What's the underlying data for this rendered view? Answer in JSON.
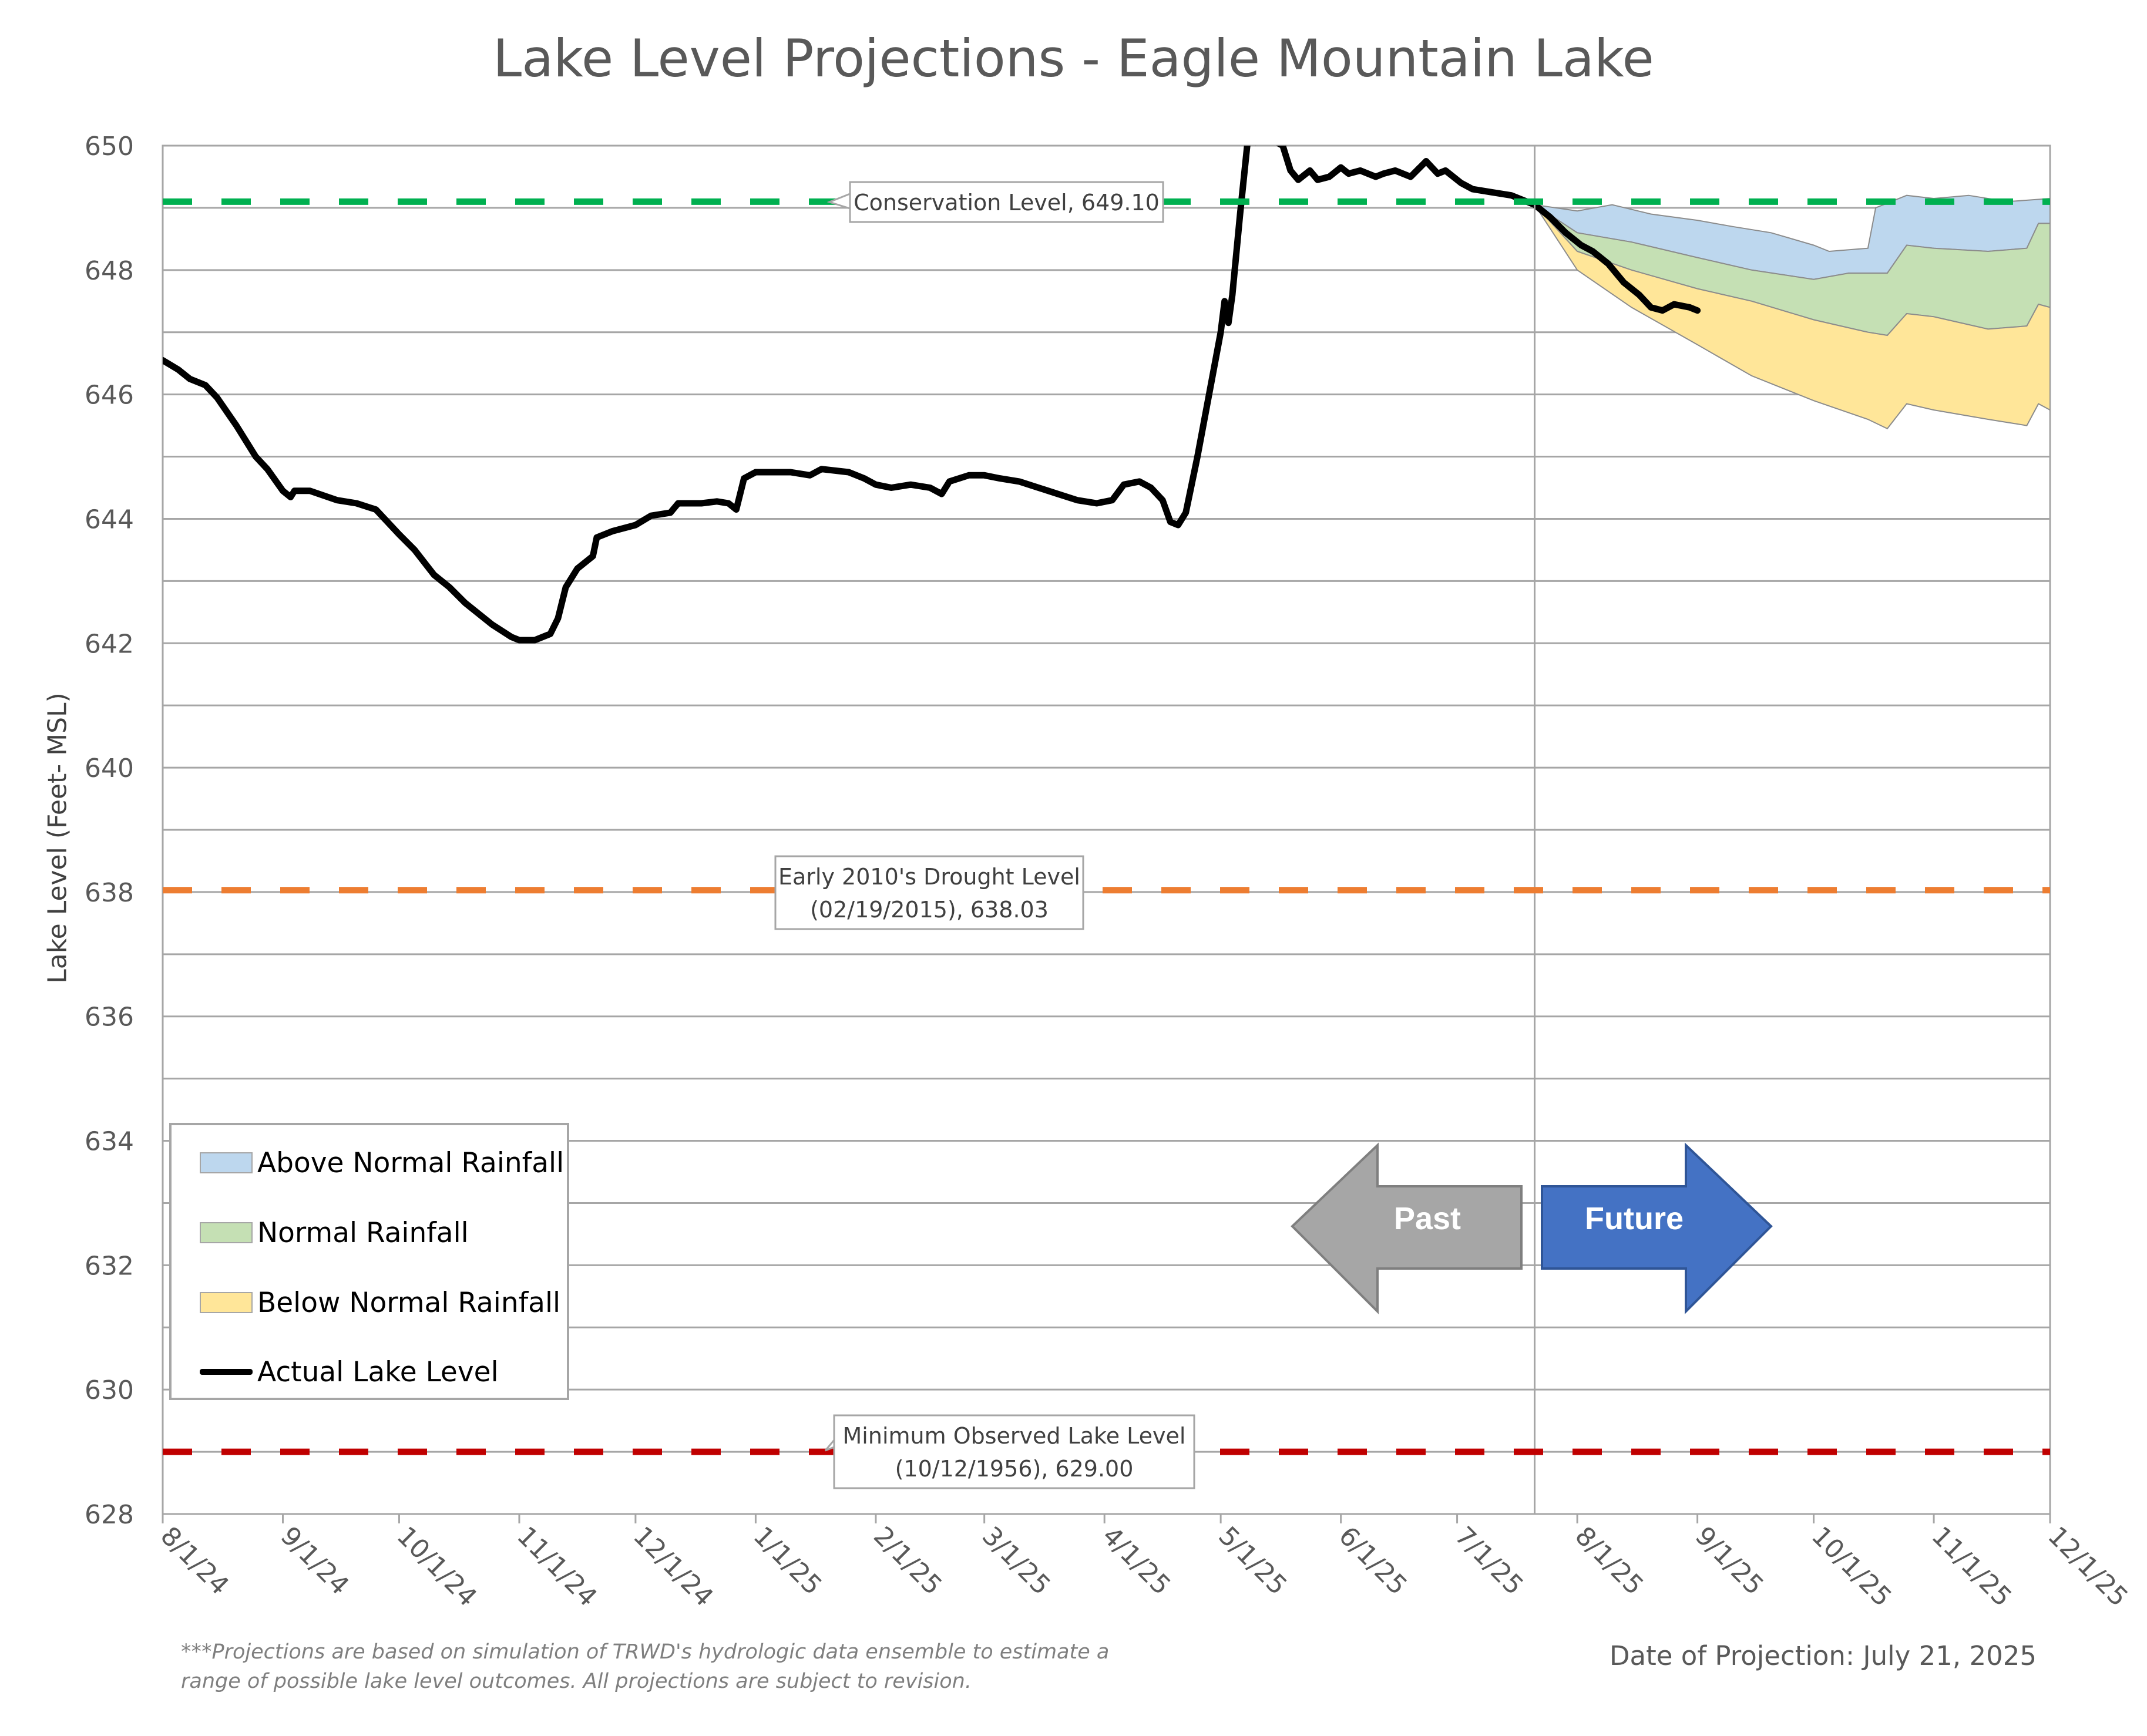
{
  "chart_data": {
    "type": "area",
    "title": "Lake Level Projections - Eagle Mountain Lake",
    "ylabel": "Lake Level (Feet- MSL)",
    "xlabel": "",
    "ylim": [
      628,
      650
    ],
    "yticks": [
      "628",
      "630",
      "632",
      "634",
      "636",
      "638",
      "640",
      "642",
      "644",
      "646",
      "648",
      "650"
    ],
    "xlim": [
      "2024-08-01",
      "2025-12-01"
    ],
    "xtick_dates": [
      "2024-08-01",
      "2024-09-01",
      "2024-10-01",
      "2024-11-01",
      "2024-12-01",
      "2025-01-01",
      "2025-02-01",
      "2025-03-01",
      "2025-04-01",
      "2025-05-01",
      "2025-06-01",
      "2025-07-01",
      "2025-08-01",
      "2025-09-01",
      "2025-10-01",
      "2025-11-01",
      "2025-12-01"
    ],
    "xtick_labels": [
      "8/1/24",
      "9/1/24",
      "10/1/24",
      "11/1/24",
      "12/1/24",
      "1/1/25",
      "2/1/25",
      "3/1/25",
      "4/1/25",
      "5/1/25",
      "6/1/25",
      "7/1/25",
      "8/1/25",
      "9/1/25",
      "10/1/25",
      "11/1/25",
      "12/1/25"
    ],
    "grid": true,
    "divider_date": "2025-07-21",
    "reference_lines": [
      {
        "label": "Conservation Level, 649.10",
        "label_lines": [
          "Conservation Level, 649.10"
        ],
        "value": 649.1,
        "color": "#00b050"
      },
      {
        "label": "Early 2010's Drought Level (02/19/2015), 638.03",
        "label_lines": [
          "Early 2010's Drought Level",
          "(02/19/2015), 638.03"
        ],
        "value": 638.03,
        "color": "#ed7d31"
      },
      {
        "label": "Minimum Observed Lake Level (10/12/1956), 629.00",
        "label_lines": [
          "Minimum Observed Lake Level",
          "(10/12/1956), 629.00"
        ],
        "value": 629.0,
        "color": "#c00000"
      }
    ],
    "bands": [
      {
        "name": "Above Normal Rainfall",
        "color": "#bdd7ee",
        "upper": [
          [
            "2025-07-21",
            649.05
          ],
          [
            "2025-08-01",
            648.95
          ],
          [
            "2025-08-10",
            649.05
          ],
          [
            "2025-08-20",
            648.9
          ],
          [
            "2025-09-01",
            648.8
          ],
          [
            "2025-09-10",
            648.7
          ],
          [
            "2025-09-20",
            648.6
          ],
          [
            "2025-10-01",
            648.4
          ],
          [
            "2025-10-05",
            648.3
          ],
          [
            "2025-10-15",
            648.35
          ],
          [
            "2025-10-17",
            649.0
          ],
          [
            "2025-10-25",
            649.2
          ],
          [
            "2025-11-01",
            649.15
          ],
          [
            "2025-11-10",
            649.2
          ],
          [
            "2025-11-20",
            649.1
          ],
          [
            "2025-12-01",
            649.15
          ]
        ],
        "lower": [
          [
            "2025-07-21",
            649.05
          ],
          [
            "2025-08-01",
            648.6
          ],
          [
            "2025-08-15",
            648.45
          ],
          [
            "2025-09-01",
            648.2
          ],
          [
            "2025-09-15",
            648.0
          ],
          [
            "2025-10-01",
            647.85
          ],
          [
            "2025-10-10",
            647.95
          ],
          [
            "2025-10-20",
            647.95
          ],
          [
            "2025-10-25",
            648.4
          ],
          [
            "2025-11-01",
            648.35
          ],
          [
            "2025-11-15",
            648.3
          ],
          [
            "2025-11-25",
            648.35
          ],
          [
            "2025-11-28",
            648.75
          ],
          [
            "2025-12-01",
            648.75
          ]
        ]
      },
      {
        "name": "Normal Rainfall",
        "color": "#c5e0b4",
        "upper": [
          [
            "2025-07-21",
            649.05
          ],
          [
            "2025-08-01",
            648.6
          ],
          [
            "2025-08-15",
            648.45
          ],
          [
            "2025-09-01",
            648.2
          ],
          [
            "2025-09-15",
            648.0
          ],
          [
            "2025-10-01",
            647.85
          ],
          [
            "2025-10-10",
            647.95
          ],
          [
            "2025-10-20",
            647.95
          ],
          [
            "2025-10-25",
            648.4
          ],
          [
            "2025-11-01",
            648.35
          ],
          [
            "2025-11-15",
            648.3
          ],
          [
            "2025-11-25",
            648.35
          ],
          [
            "2025-11-28",
            648.75
          ],
          [
            "2025-12-01",
            648.75
          ]
        ],
        "lower": [
          [
            "2025-07-21",
            649.05
          ],
          [
            "2025-08-01",
            648.3
          ],
          [
            "2025-08-15",
            648.0
          ],
          [
            "2025-09-01",
            647.7
          ],
          [
            "2025-09-15",
            647.5
          ],
          [
            "2025-10-01",
            647.2
          ],
          [
            "2025-10-15",
            647.0
          ],
          [
            "2025-10-20",
            646.95
          ],
          [
            "2025-10-25",
            647.3
          ],
          [
            "2025-11-01",
            647.25
          ],
          [
            "2025-11-15",
            647.05
          ],
          [
            "2025-11-25",
            647.1
          ],
          [
            "2025-11-28",
            647.45
          ],
          [
            "2025-12-01",
            647.4
          ]
        ]
      },
      {
        "name": "Below Normal Rainfall",
        "color": "#ffe699",
        "upper": [
          [
            "2025-07-21",
            649.05
          ],
          [
            "2025-08-01",
            648.3
          ],
          [
            "2025-08-15",
            648.0
          ],
          [
            "2025-09-01",
            647.7
          ],
          [
            "2025-09-15",
            647.5
          ],
          [
            "2025-10-01",
            647.2
          ],
          [
            "2025-10-15",
            647.0
          ],
          [
            "2025-10-20",
            646.95
          ],
          [
            "2025-10-25",
            647.3
          ],
          [
            "2025-11-01",
            647.25
          ],
          [
            "2025-11-15",
            647.05
          ],
          [
            "2025-11-25",
            647.1
          ],
          [
            "2025-11-28",
            647.45
          ],
          [
            "2025-12-01",
            647.4
          ]
        ],
        "lower": [
          [
            "2025-07-21",
            649.05
          ],
          [
            "2025-08-01",
            648.0
          ],
          [
            "2025-08-15",
            647.4
          ],
          [
            "2025-09-01",
            646.8
          ],
          [
            "2025-09-15",
            646.3
          ],
          [
            "2025-10-01",
            645.9
          ],
          [
            "2025-10-15",
            645.6
          ],
          [
            "2025-10-20",
            645.45
          ],
          [
            "2025-10-25",
            645.85
          ],
          [
            "2025-11-01",
            645.75
          ],
          [
            "2025-11-15",
            645.6
          ],
          [
            "2025-11-25",
            645.5
          ],
          [
            "2025-11-28",
            645.85
          ],
          [
            "2025-12-01",
            645.75
          ]
        ]
      }
    ],
    "series": [
      {
        "name": "Actual Lake Level",
        "color": "#000000",
        "points": [
          [
            "2024-08-01",
            646.55
          ],
          [
            "2024-08-05",
            646.4
          ],
          [
            "2024-08-08",
            646.25
          ],
          [
            "2024-08-12",
            646.15
          ],
          [
            "2024-08-15",
            645.95
          ],
          [
            "2024-08-20",
            645.5
          ],
          [
            "2024-08-25",
            645.0
          ],
          [
            "2024-08-28",
            644.8
          ],
          [
            "2024-09-01",
            644.45
          ],
          [
            "2024-09-03",
            644.35
          ],
          [
            "2024-09-04",
            644.45
          ],
          [
            "2024-09-08",
            644.45
          ],
          [
            "2024-09-15",
            644.3
          ],
          [
            "2024-09-20",
            644.25
          ],
          [
            "2024-09-25",
            644.15
          ],
          [
            "2024-10-01",
            643.75
          ],
          [
            "2024-10-05",
            643.5
          ],
          [
            "2024-10-10",
            643.1
          ],
          [
            "2024-10-14",
            642.9
          ],
          [
            "2024-10-18",
            642.65
          ],
          [
            "2024-10-25",
            642.3
          ],
          [
            "2024-10-30",
            642.1
          ],
          [
            "2024-11-01",
            642.05
          ],
          [
            "2024-11-05",
            642.05
          ],
          [
            "2024-11-09",
            642.15
          ],
          [
            "2024-11-11",
            642.4
          ],
          [
            "2024-11-13",
            642.9
          ],
          [
            "2024-11-16",
            643.2
          ],
          [
            "2024-11-20",
            643.4
          ],
          [
            "2024-11-21",
            643.7
          ],
          [
            "2024-11-25",
            643.8
          ],
          [
            "2024-12-01",
            643.9
          ],
          [
            "2024-12-05",
            644.05
          ],
          [
            "2024-12-10",
            644.1
          ],
          [
            "2024-12-12",
            644.25
          ],
          [
            "2024-12-18",
            644.25
          ],
          [
            "2024-12-22",
            644.28
          ],
          [
            "2024-12-25",
            644.25
          ],
          [
            "2024-12-27",
            644.15
          ],
          [
            "2024-12-29",
            644.65
          ],
          [
            "2025-01-01",
            644.75
          ],
          [
            "2025-01-10",
            644.75
          ],
          [
            "2025-01-15",
            644.7
          ],
          [
            "2025-01-18",
            644.8
          ],
          [
            "2025-01-25",
            644.75
          ],
          [
            "2025-01-29",
            644.65
          ],
          [
            "2025-02-01",
            644.55
          ],
          [
            "2025-02-05",
            644.5
          ],
          [
            "2025-02-10",
            644.55
          ],
          [
            "2025-02-15",
            644.5
          ],
          [
            "2025-02-18",
            644.4
          ],
          [
            "2025-02-20",
            644.6
          ],
          [
            "2025-02-25",
            644.7
          ],
          [
            "2025-03-01",
            644.7
          ],
          [
            "2025-03-05",
            644.65
          ],
          [
            "2025-03-10",
            644.6
          ],
          [
            "2025-03-15",
            644.5
          ],
          [
            "2025-03-20",
            644.4
          ],
          [
            "2025-03-25",
            644.3
          ],
          [
            "2025-03-30",
            644.25
          ],
          [
            "2025-04-03",
            644.3
          ],
          [
            "2025-04-06",
            644.55
          ],
          [
            "2025-04-10",
            644.6
          ],
          [
            "2025-04-13",
            644.5
          ],
          [
            "2025-04-16",
            644.3
          ],
          [
            "2025-04-18",
            643.95
          ],
          [
            "2025-04-20",
            643.9
          ],
          [
            "2025-04-22",
            644.1
          ],
          [
            "2025-04-25",
            645.0
          ],
          [
            "2025-04-28",
            646.0
          ],
          [
            "2025-05-01",
            647.0
          ],
          [
            "2025-05-02",
            647.5
          ],
          [
            "2025-05-03",
            647.15
          ],
          [
            "2025-05-04",
            647.6
          ],
          [
            "2025-05-06",
            648.9
          ],
          [
            "2025-05-08",
            650.1
          ],
          [
            "2025-05-10",
            650.05
          ],
          [
            "2025-05-12",
            650.1
          ],
          [
            "2025-05-14",
            650.1
          ],
          [
            "2025-05-17",
            650.0
          ],
          [
            "2025-05-19",
            649.6
          ],
          [
            "2025-05-21",
            649.45
          ],
          [
            "2025-05-24",
            649.6
          ],
          [
            "2025-05-26",
            649.45
          ],
          [
            "2025-05-29",
            649.5
          ],
          [
            "2025-06-01",
            649.65
          ],
          [
            "2025-06-03",
            649.55
          ],
          [
            "2025-06-06",
            649.6
          ],
          [
            "2025-06-10",
            649.5
          ],
          [
            "2025-06-12",
            649.55
          ],
          [
            "2025-06-15",
            649.6
          ],
          [
            "2025-06-19",
            649.5
          ],
          [
            "2025-06-23",
            649.75
          ],
          [
            "2025-06-26",
            649.55
          ],
          [
            "2025-06-28",
            649.6
          ],
          [
            "2025-07-02",
            649.4
          ],
          [
            "2025-07-05",
            649.3
          ],
          [
            "2025-07-10",
            649.25
          ],
          [
            "2025-07-15",
            649.2
          ],
          [
            "2025-07-21",
            649.05
          ],
          [
            "2025-07-25",
            648.85
          ],
          [
            "2025-07-29",
            648.6
          ],
          [
            "2025-08-02",
            648.4
          ],
          [
            "2025-08-05",
            648.3
          ],
          [
            "2025-08-09",
            648.1
          ],
          [
            "2025-08-13",
            647.8
          ],
          [
            "2025-08-17",
            647.6
          ],
          [
            "2025-08-20",
            647.4
          ],
          [
            "2025-08-23",
            647.35
          ],
          [
            "2025-08-26",
            647.45
          ],
          [
            "2025-08-30",
            647.4
          ],
          [
            "2025-09-01",
            647.35
          ]
        ]
      }
    ]
  },
  "legend": {
    "above": "Above Normal Rainfall",
    "normal": "Normal Rainfall",
    "below": "Below Normal Rainfall",
    "actual": "Actual Lake Level"
  },
  "arrows": {
    "past": "Past",
    "future": "Future",
    "past_color": "#a6a6a6",
    "future_color": "#4472c4"
  },
  "footnote": "***Projections are based on simulation of TRWD's hydrologic data ensemble to estimate a range of possible lake level outcomes.  All projections are subject to revision.",
  "projection_date": "Date of Projection: July 21, 2025"
}
